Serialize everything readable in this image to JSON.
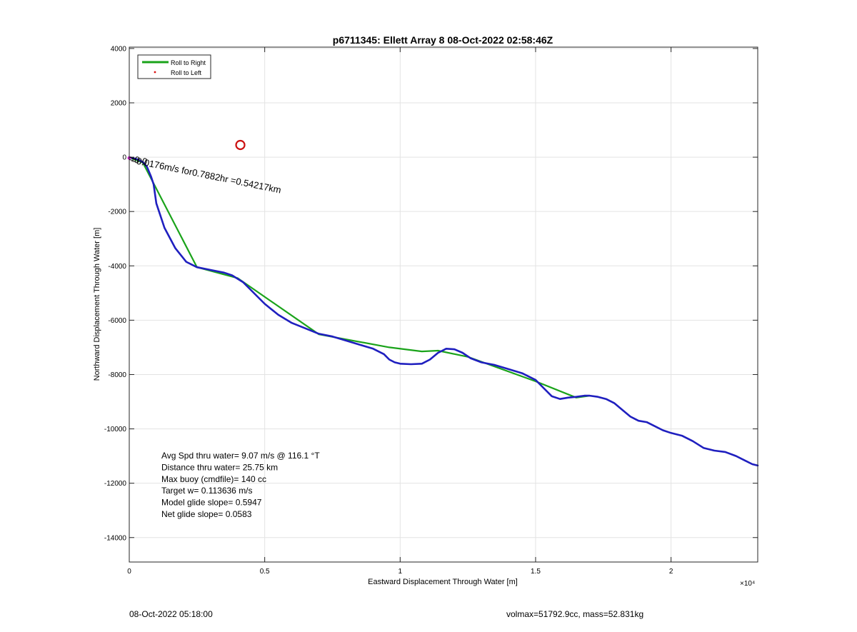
{
  "chart_data": {
    "type": "line",
    "title": "p6711345: Ellett Array 8 08-Oct-2022 02:58:46Z",
    "xlabel": "Eastward Displacement Through Water [m]",
    "ylabel": "Northward Displacement Through Water [m]",
    "xlim": [
      0,
      23200
    ],
    "ylim": [
      -14900,
      4050
    ],
    "x_ticks": [
      0,
      5000,
      10000,
      15000,
      20000
    ],
    "x_tick_labels": [
      "0",
      "0.5",
      "1",
      "1.5",
      "2"
    ],
    "x_exponent_label": "×10⁴",
    "y_ticks": [
      4000,
      2000,
      0,
      -2000,
      -4000,
      -6000,
      -8000,
      -10000,
      -12000,
      -14000
    ],
    "y_tick_labels": [
      "4000",
      "2000",
      "0",
      "-2000",
      "-4000",
      "-6000",
      "-8000",
      "-10000",
      "-12000",
      "-14000"
    ],
    "grid": true,
    "legend": {
      "placement": "top-left",
      "entries": [
        {
          "label": "Roll to Right",
          "color": "#1aa31a",
          "marker": "line"
        },
        {
          "label": "Roll to Left",
          "color": "#dd1111",
          "marker": "dot"
        }
      ]
    },
    "series": [
      {
        "name": "Roll to Right",
        "color": "#1aa31a",
        "x": [
          100,
          500,
          2500,
          4000,
          7000,
          9600,
          10800,
          11400,
          12500,
          15000,
          16500,
          17000
        ],
        "y": [
          -50,
          -200,
          -4050,
          -4450,
          -6520,
          -7000,
          -7150,
          -7120,
          -7350,
          -8250,
          -8850,
          -8780
        ]
      },
      {
        "name": "",
        "color": "#1f1fbf",
        "x": [
          0,
          300,
          500,
          650,
          800,
          900,
          1000,
          1300,
          1700,
          2100,
          2500,
          3000,
          3500,
          3800,
          4200,
          4500,
          5000,
          5500,
          6000,
          6500,
          7000,
          7500,
          8000,
          8500,
          9000,
          9400,
          9600,
          9800,
          10000,
          10400,
          10800,
          11100,
          11400,
          11700,
          12000,
          12300,
          12600,
          13000,
          13500,
          14000,
          14500,
          15000,
          15300,
          15600,
          15900,
          16200,
          16500,
          16800,
          17000,
          17300,
          17600,
          17900,
          18200,
          18500,
          18800,
          19100,
          19400,
          19700,
          20000,
          20400,
          20800,
          21200,
          21600,
          22000,
          22400,
          22700,
          23000,
          23200
        ],
        "y": [
          0,
          -80,
          -180,
          -350,
          -700,
          -1000,
          -1700,
          -2600,
          -3350,
          -3850,
          -4050,
          -4150,
          -4250,
          -4350,
          -4600,
          -4900,
          -5400,
          -5800,
          -6100,
          -6300,
          -6500,
          -6600,
          -6750,
          -6900,
          -7050,
          -7250,
          -7450,
          -7550,
          -7600,
          -7620,
          -7600,
          -7450,
          -7200,
          -7050,
          -7070,
          -7200,
          -7400,
          -7550,
          -7650,
          -7800,
          -7950,
          -8200,
          -8500,
          -8800,
          -8900,
          -8850,
          -8820,
          -8780,
          -8780,
          -8820,
          -8900,
          -9050,
          -9300,
          -9550,
          -9700,
          -9750,
          -9900,
          -10050,
          -10150,
          -10250,
          -10450,
          -10700,
          -10800,
          -10850,
          -11000,
          -11150,
          -11300,
          -11350
        ]
      }
    ],
    "markers": [
      {
        "name": "target-circle",
        "x": 4100,
        "y": 450,
        "color": "#cc1111"
      }
    ],
    "annotations": [
      {
        "text": "Avg Spd thru water=  9.07 m/s @ 116.1 °T"
      },
      {
        "text": "Distance thru water= 25.75 km"
      },
      {
        "text": "Max buoy (cmdfile)= 140 cc"
      },
      {
        "text": "Target w= 0.113636 m/s"
      },
      {
        "text": "Model glide slope= 0.5947"
      },
      {
        "text": "Net glide slope= 0.0583"
      }
    ],
    "rotated_label": "=0.0176m/s for0.7882hr =0.54217km",
    "start_label": "=0.0"
  },
  "footer": {
    "timestamp": "08-Oct-2022 05:18:00",
    "mass_info": "volmax=51792.9cc, mass=52.831kg"
  }
}
